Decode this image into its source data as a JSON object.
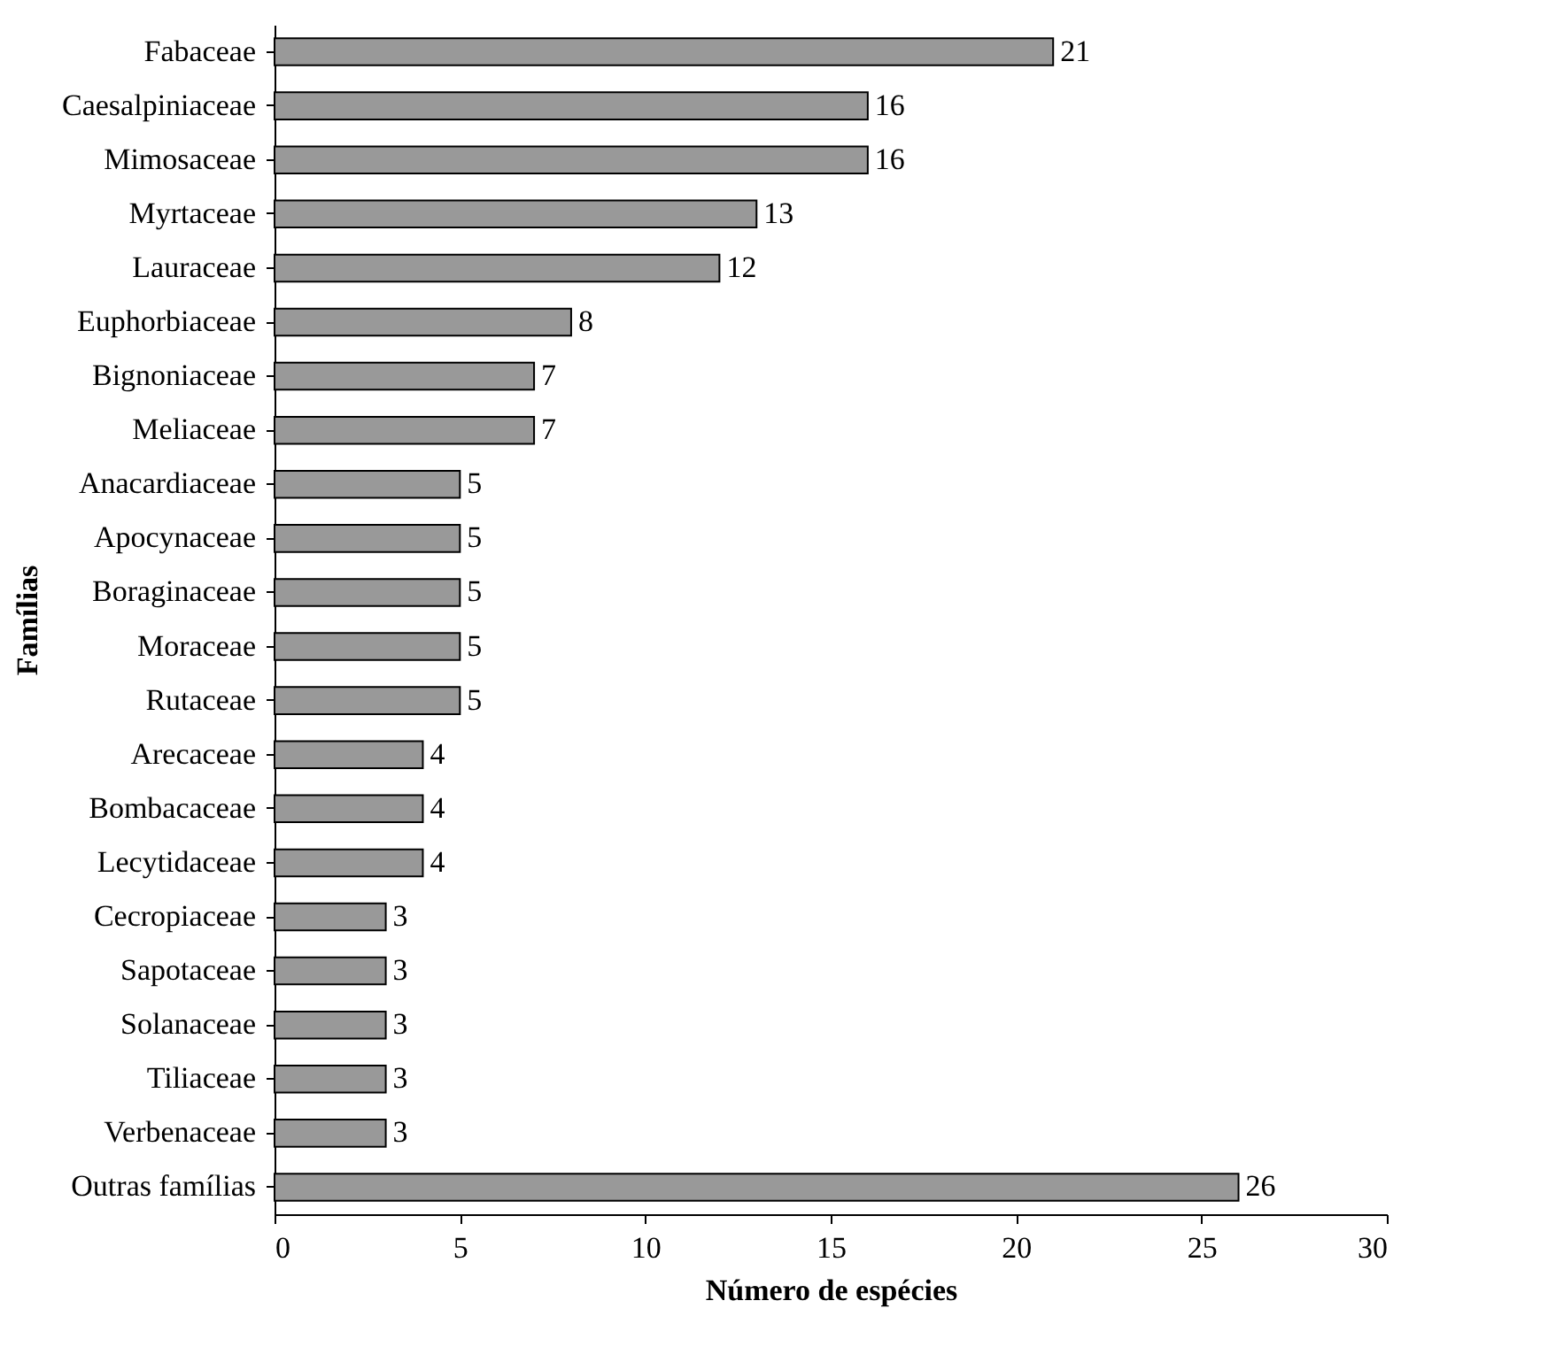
{
  "chart_data": {
    "type": "bar",
    "orientation": "horizontal",
    "xlabel": "Número de espécies",
    "ylabel": "Famílias",
    "categories": [
      "Fabaceae",
      "Caesalpiniaceae",
      "Mimosaceae",
      "Myrtaceae",
      "Lauraceae",
      "Euphorbiaceae",
      "Bignoniaceae",
      "Meliaceae",
      "Anacardiaceae",
      "Apocynaceae",
      "Boraginaceae",
      "Moraceae",
      "Rutaceae",
      "Arecaceae",
      "Bombacaceae",
      "Lecytidaceae",
      "Cecropiaceae",
      "Sapotaceae",
      "Solanaceae",
      "Tiliaceae",
      "Verbenaceae",
      "Outras famílias"
    ],
    "values": [
      21,
      16,
      16,
      13,
      12,
      8,
      7,
      7,
      5,
      5,
      5,
      5,
      5,
      4,
      4,
      4,
      3,
      3,
      3,
      3,
      3,
      26
    ],
    "color": "#999999",
    "xlim": [
      0,
      30
    ],
    "xticks": [
      0,
      5,
      10,
      15,
      20,
      25,
      30
    ],
    "grid": false,
    "data_labels": true
  }
}
